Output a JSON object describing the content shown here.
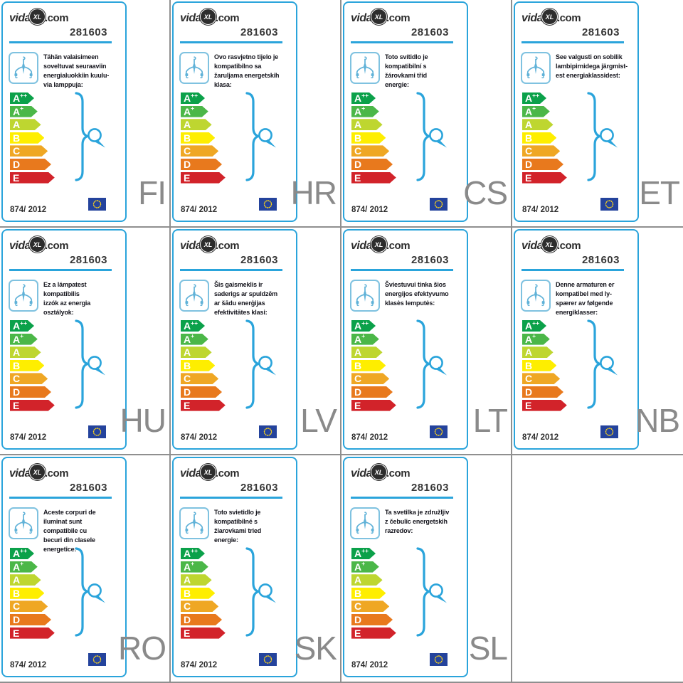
{
  "brand": {
    "prefix": "vida",
    "badge": "XL",
    "suffix": ".com"
  },
  "product_number": "281603",
  "regulation": "874/ 2012",
  "colors": {
    "accent_blue": "#2aa4db",
    "icon_blue": "#60b2d8",
    "lang_code_gray": "#8a8a8a",
    "flag_bg": "#24439c",
    "flag_stars": "#ffd617"
  },
  "icons": [
    "chandelier-icon",
    "brace-icon",
    "bulb-icon",
    "eu-flag-icon"
  ],
  "energy_classes": [
    {
      "letter": "A",
      "sup": "++",
      "color": "#0ba14a"
    },
    {
      "letter": "A",
      "sup": "+",
      "color": "#4bb748"
    },
    {
      "letter": "A",
      "sup": "",
      "color": "#bed630"
    },
    {
      "letter": "B",
      "sup": "",
      "color": "#feee00"
    },
    {
      "letter": "C",
      "sup": "",
      "color": "#efa724"
    },
    {
      "letter": "D",
      "sup": "",
      "color": "#e8791d"
    },
    {
      "letter": "E",
      "sup": "",
      "color": "#d2232a"
    }
  ],
  "cards": [
    {
      "lang": "FI",
      "description": "Tähän valaisimeen\nsoveltuvat seuraaviin\nenergialuokkiin kuulu-\nvia lamppuja:"
    },
    {
      "lang": "HR",
      "description": "Ovo rasvjetno tijelo je\nkompatibilno sa\nžaruljama energetskih\nklasa:"
    },
    {
      "lang": "CS",
      "description": "Toto svítidlo je\nkompatibilní s\nžárovkami tříd\nenergie:"
    },
    {
      "lang": "ET",
      "description": "See valgusti on sobilik\nlambipirnidega järgmist-\nest energiaklassidest:"
    },
    {
      "lang": "HU",
      "description": "Ez a lámpatest\nkompatibilis\nizzók az energia\nosztályok:"
    },
    {
      "lang": "LV",
      "description": "Šis gaismeklis ir\nsaderigs ar spuldzēm\nar šādu enerģijas\nefektivitātes klasi:"
    },
    {
      "lang": "LT",
      "description": "Šviestuvui tinka šios\nenergijos efektyvumo\nklasės lemputės:"
    },
    {
      "lang": "NB",
      "description": "Denne armaturen er\nkompatibel med ly-\nspærer av følgende\nenergiklasser:"
    },
    {
      "lang": "RO",
      "description": "Aceste corpuri de\niluminat sunt\ncompatibile cu\nbecuri din clasele\nenergetice:"
    },
    {
      "lang": "SK",
      "description": "Toto svietidlo je\nkompatibilné s\nžiarovkami tried\nenergie:"
    },
    {
      "lang": "SL",
      "description": "Ta svetilka je združljiv\nz čebulic energetskih\nrazredov:"
    }
  ]
}
